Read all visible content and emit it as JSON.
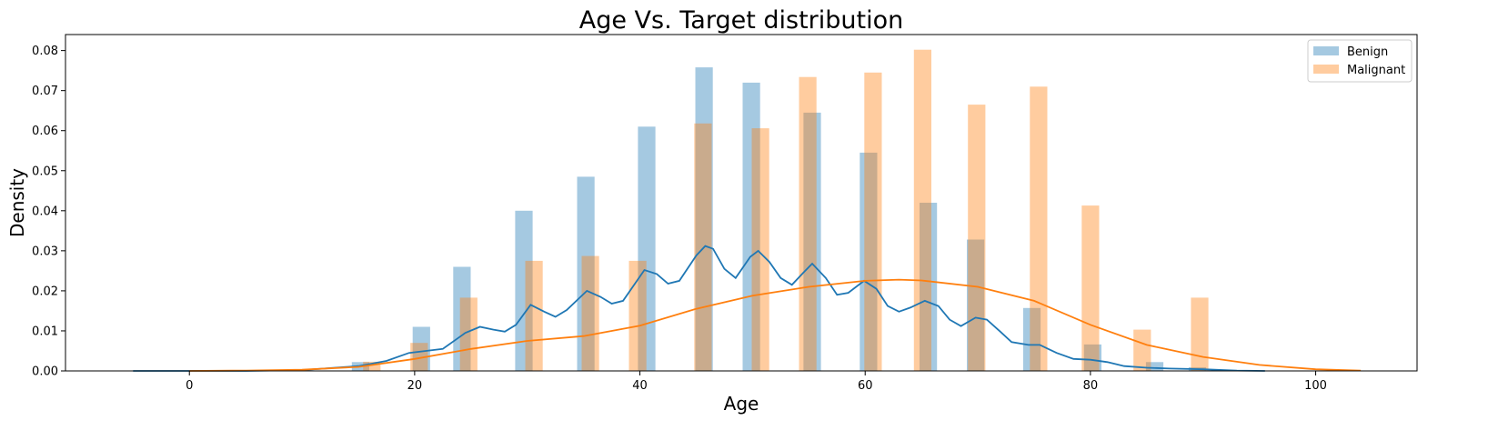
{
  "chart_data": {
    "type": "histogram",
    "title": "Age Vs. Target distribution",
    "xlabel": "Age",
    "ylabel": "Density",
    "xlim": [
      -11,
      109
    ],
    "ylim": [
      0,
      0.084
    ],
    "xticks": [
      0,
      20,
      40,
      60,
      80,
      100
    ],
    "yticks": [
      0.0,
      0.01,
      0.02,
      0.03,
      0.04,
      0.05,
      0.06,
      0.07,
      0.08
    ],
    "ytick_labels": [
      "0.00",
      "0.01",
      "0.02",
      "0.03",
      "0.04",
      "0.05",
      "0.06",
      "0.07",
      "0.08"
    ],
    "legend_position": "top-right",
    "grid": false,
    "bar_width": 1.55,
    "series": [
      {
        "name": "Benign",
        "color": "#1f77b4",
        "bars": [
          {
            "x": 15.2,
            "density": 0.0022
          },
          {
            "x": 20.6,
            "density": 0.011
          },
          {
            "x": 24.2,
            "density": 0.026
          },
          {
            "x": 29.7,
            "density": 0.04
          },
          {
            "x": 35.2,
            "density": 0.0485
          },
          {
            "x": 40.6,
            "density": 0.061
          },
          {
            "x": 45.7,
            "density": 0.0758
          },
          {
            "x": 49.9,
            "density": 0.072
          },
          {
            "x": 55.3,
            "density": 0.0645
          },
          {
            "x": 60.3,
            "density": 0.0545
          },
          {
            "x": 65.6,
            "density": 0.042
          },
          {
            "x": 69.8,
            "density": 0.0328
          },
          {
            "x": 74.8,
            "density": 0.0157
          },
          {
            "x": 80.2,
            "density": 0.0066
          },
          {
            "x": 85.7,
            "density": 0.0022
          },
          {
            "x": 89.5,
            "density": 0.0009
          }
        ],
        "kde": [
          [
            -5,
            0.0
          ],
          [
            5,
            0.0
          ],
          [
            10,
            0.0002
          ],
          [
            15,
            0.0012
          ],
          [
            17.5,
            0.0025
          ],
          [
            19.5,
            0.0045
          ],
          [
            21,
            0.005
          ],
          [
            22.5,
            0.0055
          ],
          [
            24.5,
            0.0095
          ],
          [
            25.8,
            0.011
          ],
          [
            27,
            0.0103
          ],
          [
            28,
            0.0098
          ],
          [
            29,
            0.0115
          ],
          [
            30.3,
            0.0165
          ],
          [
            31.5,
            0.0148
          ],
          [
            32.5,
            0.0135
          ],
          [
            33.5,
            0.0152
          ],
          [
            35.3,
            0.02
          ],
          [
            36.5,
            0.0185
          ],
          [
            37.5,
            0.0168
          ],
          [
            38.5,
            0.0175
          ],
          [
            40.4,
            0.0252
          ],
          [
            41.5,
            0.0242
          ],
          [
            42.5,
            0.0218
          ],
          [
            43.5,
            0.0225
          ],
          [
            45,
            0.0288
          ],
          [
            45.8,
            0.0312
          ],
          [
            46.5,
            0.0305
          ],
          [
            47.5,
            0.0255
          ],
          [
            48.5,
            0.0232
          ],
          [
            49.8,
            0.0285
          ],
          [
            50.5,
            0.03
          ],
          [
            51.5,
            0.0272
          ],
          [
            52.5,
            0.0232
          ],
          [
            53.5,
            0.0215
          ],
          [
            54.5,
            0.0245
          ],
          [
            55.3,
            0.0268
          ],
          [
            56.5,
            0.0232
          ],
          [
            57.5,
            0.019
          ],
          [
            58.5,
            0.0195
          ],
          [
            59.9,
            0.0225
          ],
          [
            61,
            0.0205
          ],
          [
            62,
            0.0162
          ],
          [
            63,
            0.0148
          ],
          [
            64,
            0.0158
          ],
          [
            65.3,
            0.0175
          ],
          [
            66.5,
            0.0162
          ],
          [
            67.5,
            0.0128
          ],
          [
            68.5,
            0.0112
          ],
          [
            69.8,
            0.0133
          ],
          [
            70.8,
            0.0128
          ],
          [
            72,
            0.0098
          ],
          [
            73,
            0.0072
          ],
          [
            74.5,
            0.0065
          ],
          [
            75.5,
            0.0065
          ],
          [
            77,
            0.0045
          ],
          [
            78.5,
            0.003
          ],
          [
            80,
            0.0028
          ],
          [
            81.5,
            0.0022
          ],
          [
            83,
            0.0012
          ],
          [
            85,
            0.0008
          ],
          [
            87,
            0.0006
          ],
          [
            90,
            0.0004
          ],
          [
            93,
            0.0001
          ],
          [
            95.5,
            0.0
          ]
        ]
      },
      {
        "name": "Malignant",
        "color": "#ff7f0e",
        "bars": [
          {
            "x": 16.2,
            "density": 0.0023
          },
          {
            "x": 20.4,
            "density": 0.007
          },
          {
            "x": 24.8,
            "density": 0.0183
          },
          {
            "x": 30.6,
            "density": 0.0275
          },
          {
            "x": 35.6,
            "density": 0.0287
          },
          {
            "x": 39.8,
            "density": 0.0275
          },
          {
            "x": 45.6,
            "density": 0.0618
          },
          {
            "x": 50.7,
            "density": 0.0606
          },
          {
            "x": 54.9,
            "density": 0.0734
          },
          {
            "x": 60.7,
            "density": 0.0745
          },
          {
            "x": 65.1,
            "density": 0.0802
          },
          {
            "x": 69.9,
            "density": 0.0665
          },
          {
            "x": 75.4,
            "density": 0.071
          },
          {
            "x": 80.0,
            "density": 0.0413
          },
          {
            "x": 84.6,
            "density": 0.0103
          },
          {
            "x": 89.7,
            "density": 0.0183
          }
        ],
        "kde": [
          [
            0,
            0.0
          ],
          [
            5,
            0.0001
          ],
          [
            10,
            0.0003
          ],
          [
            15,
            0.001
          ],
          [
            20,
            0.003
          ],
          [
            25,
            0.0055
          ],
          [
            30,
            0.0075
          ],
          [
            35,
            0.0087
          ],
          [
            40,
            0.0113
          ],
          [
            45,
            0.0155
          ],
          [
            50,
            0.0188
          ],
          [
            55,
            0.021
          ],
          [
            60,
            0.0225
          ],
          [
            63,
            0.0228
          ],
          [
            65,
            0.0226
          ],
          [
            70,
            0.021
          ],
          [
            75,
            0.0175
          ],
          [
            80,
            0.0115
          ],
          [
            85,
            0.0065
          ],
          [
            90,
            0.0035
          ],
          [
            95,
            0.0015
          ],
          [
            100,
            0.0004
          ],
          [
            104,
            0.0001
          ]
        ]
      }
    ]
  }
}
